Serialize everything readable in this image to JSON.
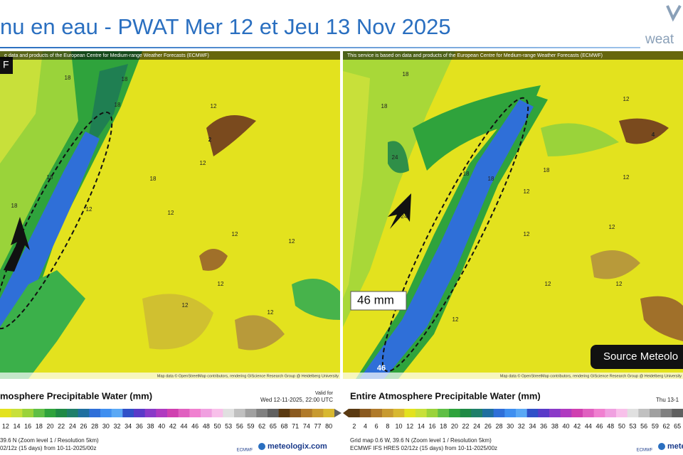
{
  "header": {
    "title": "nu en eau - PWAT Mer 12 et Jeu 13 Nov 2025",
    "logo": "weat"
  },
  "panels": [
    {
      "credit": "e data and products of the European Centre for Medium-range Weather Forecasts (ECMWF)",
      "badge": "F",
      "attribution": "Map data © OpenStreetMap contributors, rendering GIScience Research Group @ Heidelberg University",
      "map_labels": [
        18,
        18,
        12,
        2,
        12,
        18,
        18,
        12,
        12,
        12,
        18,
        12,
        12,
        12,
        12,
        18
      ],
      "legend_title": "mosphere Precipitable Water (mm)",
      "valid_label": "Valid for",
      "valid_time": "Wed 12-11-2025, 22:00 UTC",
      "scale_ticks": [
        12,
        14,
        16,
        18,
        20,
        22,
        24,
        26,
        28,
        30,
        32,
        34,
        36,
        38,
        40,
        42,
        44,
        46,
        48,
        50,
        53,
        56,
        59,
        62,
        65,
        68,
        71,
        74,
        77,
        80
      ],
      "info_lines": [
        "39.6 N (Zoom level 1 / Resolution 5km)",
        "02/12z (15 days) from 10-11-2025/00z"
      ],
      "model_logo": "ECMWF",
      "site": "meteologix.com"
    },
    {
      "credit": "This service is based on data and products of the European Centre for Medium-range Weather Forecasts (ECMWF)",
      "attribution": "Map data © OpenStreetMap contributors, rendering GIScience Research Group @ Heidelberg University",
      "map_labels": [
        18,
        18,
        24,
        24,
        18,
        12,
        12,
        12,
        12,
        18,
        12,
        12,
        4,
        12,
        18,
        12,
        46
      ],
      "annotation": "46 mm",
      "source": "Source Meteolo",
      "legend_title": "Entire Atmosphere Precipitable Water (mm)",
      "valid_time": "Thu 13-1",
      "scale_ticks": [
        2,
        4,
        6,
        8,
        10,
        12,
        14,
        16,
        18,
        20,
        22,
        24,
        26,
        28,
        30,
        32,
        34,
        36,
        38,
        40,
        42,
        44,
        46,
        48,
        50,
        53,
        56,
        59,
        62,
        65
      ],
      "info_lines": [
        "Grid map 0.6 W, 39.6 N (Zoom level 1 / Resolution 5km)",
        "ECMWF IFS HRES 02/12z (15 days) from 10-11-2025/00z"
      ],
      "model_logo": "ECMWF",
      "site": "meteologix"
    }
  ]
}
